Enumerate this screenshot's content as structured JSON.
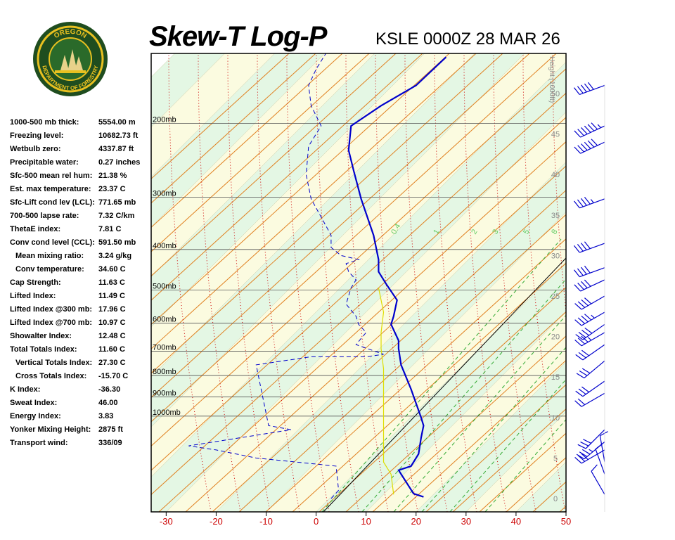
{
  "header": {
    "title": "Skew-T Log-P",
    "station": "KSLE 0000Z 28 MAR 26"
  },
  "logo": {
    "top_text": "OREGON",
    "bottom_text": "DEPARTMENT OF FORESTRY"
  },
  "stats": [
    {
      "label": "1000-500 mb thick:",
      "value": "5554.00 m",
      "indent": false
    },
    {
      "label": "Freezing level:",
      "value": "10682.73 ft",
      "indent": false
    },
    {
      "label": "Wetbulb zero:",
      "value": "4337.87 ft",
      "indent": false
    },
    {
      "label": "Precipitable water:",
      "value": "0.27 inches",
      "indent": false
    },
    {
      "label": "Sfc-500 mean rel hum:",
      "value": "21.38 %",
      "indent": false
    },
    {
      "label": "Est. max temperature:",
      "value": "23.37 C",
      "indent": false
    },
    {
      "label": "Sfc-Lift cond lev (LCL):",
      "value": "771.65 mb",
      "indent": false
    },
    {
      "label": "700-500 lapse rate:",
      "value": "7.32 C/km",
      "indent": false
    },
    {
      "label": "ThetaE index:",
      "value": "7.81 C",
      "indent": false
    },
    {
      "label": "Conv cond level (CCL):",
      "value": "591.50 mb",
      "indent": false
    },
    {
      "label": "Mean mixing ratio:",
      "value": "3.24 g/kg",
      "indent": true
    },
    {
      "label": "Conv temperature:",
      "value": "34.60 C",
      "indent": true
    },
    {
      "label": "Cap Strength:",
      "value": "11.63 C",
      "indent": false
    },
    {
      "label": "Lifted Index:",
      "value": "11.49 C",
      "indent": false
    },
    {
      "label": "Lifted Index @300 mb:",
      "value": "17.96 C",
      "indent": false
    },
    {
      "label": "Lifted Index @700 mb:",
      "value": "10.97 C",
      "indent": false
    },
    {
      "label": "Showalter Index:",
      "value": "12.48 C",
      "indent": false
    },
    {
      "label": "Total Totals Index:",
      "value": "11.60 C",
      "indent": false
    },
    {
      "label": "Vertical Totals Index:",
      "value": "27.30 C",
      "indent": true
    },
    {
      "label": "Cross Totals Index:",
      "value": "-15.70 C",
      "indent": true
    },
    {
      "label": "K Index:",
      "value": "-36.30",
      "indent": false
    },
    {
      "label": "Sweat Index:",
      "value": "46.00",
      "indent": false
    },
    {
      "label": "Energy Index:",
      "value": "3.83",
      "indent": false
    },
    {
      "label": "Yonker Mixing Height:",
      "value": "2875 ft",
      "indent": false
    },
    {
      "label": "Transport wind:",
      "value": "336/09",
      "indent": false
    }
  ],
  "chart_data": {
    "type": "line",
    "x_ticks": [
      "-30",
      "-20",
      "-10",
      "0",
      "10",
      "20",
      "30",
      "40",
      "50"
    ],
    "x_tick_values": [
      -30,
      -20,
      -10,
      0,
      10,
      20,
      30,
      40,
      50
    ],
    "xlim": [
      -33,
      50
    ],
    "pressure_levels": [
      {
        "p": 200,
        "label": "200mb"
      },
      {
        "p": 300,
        "label": "300mb"
      },
      {
        "p": 400,
        "label": "400mb"
      },
      {
        "p": 500,
        "label": "500mb"
      },
      {
        "p": 600,
        "label": "600mb"
      },
      {
        "p": 700,
        "label": "700mb"
      },
      {
        "p": 800,
        "label": "800mb"
      },
      {
        "p": 900,
        "label": "900mb"
      },
      {
        "p": 1000,
        "label": "1000mb"
      }
    ],
    "height_axis_label": "Height (1000ft)",
    "height_ticks": [
      "50",
      "45",
      "40",
      "35",
      "30",
      "25",
      "20",
      "15",
      "10",
      "5",
      "0"
    ],
    "height_tick_values": [
      50,
      45,
      40,
      35,
      30,
      25,
      20,
      15,
      10,
      5,
      0
    ],
    "mixing_ratio_labels": [
      "0.4",
      "1",
      "2",
      "3",
      "5",
      "8"
    ],
    "colors": {
      "temperature": "#0000cc",
      "dewpoint": "#0000cc",
      "parcel": "#dddd00",
      "dry_adiabat": "#e08020",
      "moist_adiabat": "#cc0000",
      "mixing_ratio": "#33aa33",
      "band_green": "#e4f7e4",
      "band_yellow": "#fbfbe0",
      "axis_label": "#cc0000"
    },
    "temperature_profile": [
      {
        "x": 21.5,
        "y": 0.2
      },
      {
        "x": 19.5,
        "y": 0.6
      },
      {
        "x": 16.5,
        "y": 3.5
      },
      {
        "x": 19,
        "y": 4
      },
      {
        "x": 20.5,
        "y": 5.5
      },
      {
        "x": 21,
        "y": 7.5
      },
      {
        "x": 21.5,
        "y": 9
      },
      {
        "x": 21,
        "y": 10
      },
      {
        "x": 19,
        "y": 13.5
      },
      {
        "x": 17,
        "y": 16.5
      },
      {
        "x": 16.5,
        "y": 18.5
      },
      {
        "x": 16.5,
        "y": 19.5
      },
      {
        "x": 15,
        "y": 21.5
      },
      {
        "x": 15.5,
        "y": 22.5
      },
      {
        "x": 16.2,
        "y": 24.5
      },
      {
        "x": 14,
        "y": 26.5
      },
      {
        "x": 12.5,
        "y": 28
      },
      {
        "x": 12.5,
        "y": 29.5
      },
      {
        "x": 11.5,
        "y": 32.5
      },
      {
        "x": 9,
        "y": 37
      },
      {
        "x": 7.5,
        "y": 40.5
      },
      {
        "x": 6.5,
        "y": 43
      },
      {
        "x": 7,
        "y": 46
      },
      {
        "x": 13,
        "y": 48.5
      },
      {
        "x": 20,
        "y": 51
      },
      {
        "x": 26,
        "y": 54.5
      }
    ],
    "dewpoint_profile": [
      {
        "x": 3,
        "y": 0
      },
      {
        "x": 4.5,
        "y": 1
      },
      {
        "x": 4,
        "y": 4
      },
      {
        "x": -12,
        "y": 5
      },
      {
        "x": -20,
        "y": 6
      },
      {
        "x": -25.5,
        "y": 6.5
      },
      {
        "x": -10,
        "y": 8
      },
      {
        "x": -5,
        "y": 8.5
      },
      {
        "x": -9.5,
        "y": 9
      },
      {
        "x": -12,
        "y": 16.5
      },
      {
        "x": -1,
        "y": 17.5
      },
      {
        "x": 10,
        "y": 17.5
      },
      {
        "x": 13.5,
        "y": 17.8
      },
      {
        "x": 8,
        "y": 19
      },
      {
        "x": 10,
        "y": 20.5
      },
      {
        "x": 8.5,
        "y": 21.5
      },
      {
        "x": 8,
        "y": 22.5
      },
      {
        "x": 6,
        "y": 24
      },
      {
        "x": 7,
        "y": 26
      },
      {
        "x": 8,
        "y": 27
      },
      {
        "x": 6.5,
        "y": 28
      },
      {
        "x": 6,
        "y": 29
      },
      {
        "x": 8.5,
        "y": 29.5
      },
      {
        "x": 5,
        "y": 30
      },
      {
        "x": 3,
        "y": 31
      },
      {
        "x": 3,
        "y": 32.5
      },
      {
        "x": -1,
        "y": 37
      },
      {
        "x": -2,
        "y": 40
      },
      {
        "x": -1.5,
        "y": 43.5
      },
      {
        "x": 1,
        "y": 46
      },
      {
        "x": -1,
        "y": 48.5
      },
      {
        "x": -1.5,
        "y": 51
      },
      {
        "x": 0,
        "y": 53
      },
      {
        "x": 2,
        "y": 55
      }
    ],
    "parcel_profile": [
      {
        "x": 15.5,
        "y": 0.5
      },
      {
        "x": 15,
        "y": 3
      },
      {
        "x": 13.5,
        "y": 4.5
      },
      {
        "x": 13.5,
        "y": 7.5
      },
      {
        "x": 13.5,
        "y": 9.5
      },
      {
        "x": 13.5,
        "y": 16
      },
      {
        "x": 13,
        "y": 18.5
      },
      {
        "x": 13,
        "y": 20.5
      },
      {
        "x": 13.5,
        "y": 23
      },
      {
        "x": 13,
        "y": 24.5
      },
      {
        "x": 12.5,
        "y": 26
      }
    ],
    "wind_barbs": [
      {
        "height": 51,
        "dir": 250,
        "speed": 50
      },
      {
        "height": 46,
        "dir": 245,
        "speed": 65
      },
      {
        "height": 44,
        "dir": 245,
        "speed": 60
      },
      {
        "height": 37,
        "dir": 250,
        "speed": 45
      },
      {
        "height": 31.5,
        "dir": 250,
        "speed": 40
      },
      {
        "height": 28.5,
        "dir": 250,
        "speed": 40
      },
      {
        "height": 27,
        "dir": 245,
        "speed": 40
      },
      {
        "height": 25,
        "dir": 240,
        "speed": 40
      },
      {
        "height": 23,
        "dir": 240,
        "speed": 45
      },
      {
        "height": 21.5,
        "dir": 235,
        "speed": 40
      },
      {
        "height": 20.5,
        "dir": 240,
        "speed": 35
      },
      {
        "height": 19,
        "dir": 235,
        "speed": 30
      },
      {
        "height": 17,
        "dir": 230,
        "speed": 30
      },
      {
        "height": 14.5,
        "dir": 235,
        "speed": 30
      },
      {
        "height": 13,
        "dir": 240,
        "speed": 20
      },
      {
        "height": 8.5,
        "dir": 225,
        "speed": 30
      },
      {
        "height": 7,
        "dir": 230,
        "speed": 35
      },
      {
        "height": 6,
        "dir": 240,
        "speed": 30
      },
      {
        "height": 4.5,
        "dir": 350,
        "speed": 10
      },
      {
        "height": 3,
        "dir": 340,
        "speed": 10
      },
      {
        "height": 0.5,
        "dir": 330,
        "speed": 10
      }
    ]
  }
}
